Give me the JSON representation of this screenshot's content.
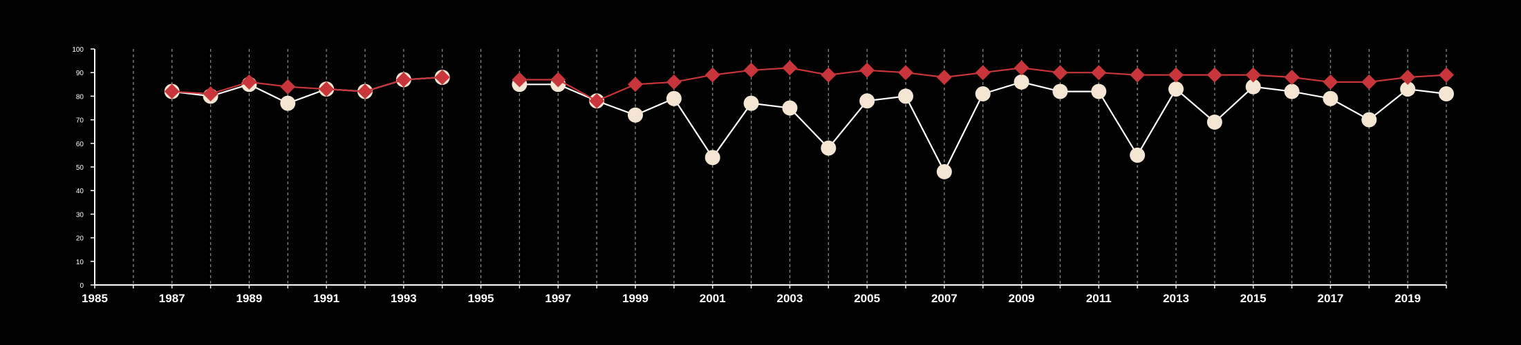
{
  "chart_data": {
    "type": "line",
    "title": "",
    "xlabel": "",
    "ylabel": "",
    "xlim": [
      1985,
      2020
    ],
    "ylim": [
      0,
      100
    ],
    "y_ticks": [
      0,
      10,
      20,
      30,
      40,
      50,
      60,
      70,
      80,
      90,
      100
    ],
    "x_ticks": [
      1985,
      1987,
      1989,
      1991,
      1993,
      1995,
      1997,
      1999,
      2001,
      2003,
      2005,
      2007,
      2009,
      2011,
      2013,
      2015,
      2017,
      2019
    ],
    "grid": "vertical dashed lines at each year",
    "legend": "none",
    "series": [
      {
        "marker": "circle",
        "color": "#f5e6d3",
        "line_color": "#ffffff",
        "points": [
          [
            1987,
            82
          ],
          [
            1988,
            80
          ],
          [
            1989,
            85
          ],
          [
            1990,
            77
          ],
          [
            1991,
            83
          ],
          [
            1992,
            82
          ],
          [
            1993,
            87
          ],
          [
            1994,
            88
          ],
          [
            1996,
            85
          ],
          [
            1997,
            85
          ],
          [
            1998,
            78
          ],
          [
            1999,
            72
          ],
          [
            2000,
            79
          ],
          [
            2001,
            54
          ],
          [
            2002,
            77
          ],
          [
            2003,
            75
          ],
          [
            2004,
            58
          ],
          [
            2005,
            78
          ],
          [
            2006,
            80
          ],
          [
            2007,
            48
          ],
          [
            2008,
            81
          ],
          [
            2009,
            86
          ],
          [
            2010,
            82
          ],
          [
            2011,
            82
          ],
          [
            2012,
            55
          ],
          [
            2013,
            83
          ],
          [
            2014,
            69
          ],
          [
            2015,
            84
          ],
          [
            2016,
            82
          ],
          [
            2017,
            79
          ],
          [
            2018,
            70
          ],
          [
            2019,
            83
          ],
          [
            2020,
            81
          ]
        ]
      },
      {
        "marker": "diamond",
        "color": "#c8353a",
        "line_color": "#c8353a",
        "points": [
          [
            1987,
            82
          ],
          [
            1988,
            81
          ],
          [
            1989,
            86
          ],
          [
            1990,
            84
          ],
          [
            1991,
            83
          ],
          [
            1992,
            82
          ],
          [
            1993,
            87
          ],
          [
            1994,
            88
          ],
          [
            1996,
            87
          ],
          [
            1997,
            87
          ],
          [
            1998,
            78
          ],
          [
            1999,
            85
          ],
          [
            2000,
            86
          ],
          [
            2001,
            89
          ],
          [
            2002,
            91
          ],
          [
            2003,
            92
          ],
          [
            2004,
            89
          ],
          [
            2005,
            91
          ],
          [
            2006,
            90
          ],
          [
            2007,
            88
          ],
          [
            2008,
            90
          ],
          [
            2009,
            92
          ],
          [
            2010,
            90
          ],
          [
            2011,
            90
          ],
          [
            2012,
            89
          ],
          [
            2013,
            89
          ],
          [
            2014,
            89
          ],
          [
            2015,
            89
          ],
          [
            2016,
            88
          ],
          [
            2017,
            86
          ],
          [
            2018,
            86
          ],
          [
            2019,
            88
          ],
          [
            2020,
            89
          ]
        ]
      }
    ]
  }
}
